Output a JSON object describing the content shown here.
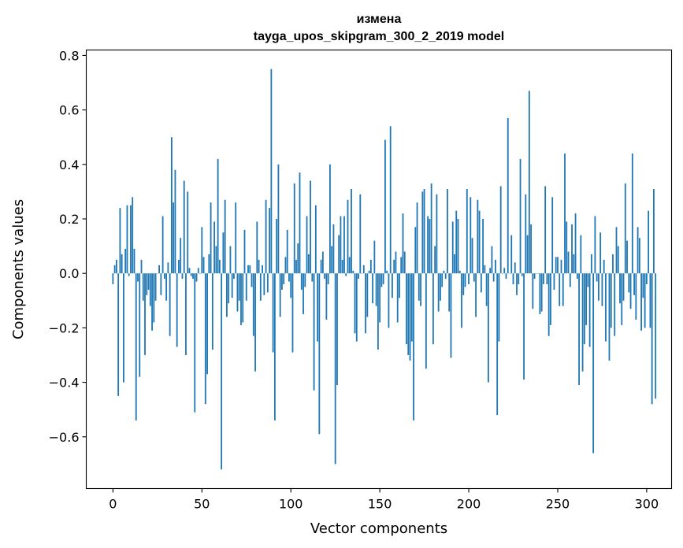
{
  "chart_data": {
    "type": "bar",
    "title": "измена",
    "subtitle": "tayga_upos_skipgram_300_2_2019 model",
    "xlabel": "Vector components",
    "ylabel": "Components values",
    "xlim": [
      -15,
      314
    ],
    "ylim": [
      -0.79,
      0.82
    ],
    "xticks": [
      0,
      50,
      100,
      150,
      200,
      250,
      300
    ],
    "xtick_labels": [
      "0",
      "50",
      "100",
      "150",
      "200",
      "250",
      "300"
    ],
    "yticks": [
      -0.6,
      -0.4,
      -0.2,
      0.0,
      0.2,
      0.4,
      0.6,
      0.8
    ],
    "ytick_labels": [
      "−0.6",
      "−0.4",
      "−0.2",
      "0.0",
      "0.2",
      "0.4",
      "0.6",
      "0.8"
    ],
    "bar_color": "#1f77b4",
    "values": [
      -0.04,
      0.03,
      0.05,
      -0.45,
      0.24,
      0.07,
      -0.4,
      0.09,
      0.25,
      -0.01,
      0.25,
      0.28,
      0.09,
      -0.54,
      -0.03,
      -0.38,
      0.05,
      -0.1,
      -0.3,
      -0.08,
      -0.06,
      -0.12,
      -0.21,
      -0.18,
      -0.1,
      0.0,
      0.03,
      -0.08,
      0.21,
      -0.02,
      -0.1,
      0.04,
      -0.23,
      0.5,
      0.26,
      0.38,
      -0.27,
      0.05,
      0.13,
      -0.02,
      0.34,
      -0.3,
      0.3,
      0.02,
      -0.01,
      -0.02,
      -0.51,
      -0.03,
      0.02,
      0.0,
      0.17,
      0.06,
      -0.48,
      -0.37,
      0.07,
      0.26,
      -0.28,
      0.19,
      0.1,
      0.42,
      0.05,
      -0.72,
      0.15,
      0.27,
      -0.16,
      -0.11,
      0.1,
      -0.09,
      -0.02,
      0.26,
      -0.14,
      -0.1,
      -0.19,
      -0.18,
      0.16,
      -0.1,
      0.03,
      0.03,
      -0.05,
      -0.23,
      -0.36,
      0.19,
      0.05,
      -0.1,
      0.03,
      -0.08,
      0.27,
      -0.07,
      0.24,
      0.75,
      -0.29,
      -0.54,
      0.2,
      0.4,
      -0.16,
      -0.06,
      -0.04,
      0.06,
      0.16,
      -0.03,
      -0.09,
      -0.29,
      0.33,
      0.05,
      0.11,
      0.37,
      -0.06,
      -0.15,
      -0.05,
      0.21,
      0.07,
      0.34,
      -0.03,
      -0.43,
      0.25,
      -0.25,
      -0.59,
      0.05,
      0.08,
      -0.02,
      -0.17,
      -0.04,
      0.4,
      0.1,
      0.18,
      -0.7,
      -0.41,
      0.14,
      0.21,
      0.05,
      0.21,
      -0.01,
      0.27,
      0.06,
      0.31,
      0.01,
      -0.22,
      -0.25,
      -0.02,
      0.29,
      0.0,
      0.03,
      -0.22,
      -0.16,
      0.01,
      0.05,
      -0.11,
      0.12,
      -0.12,
      -0.28,
      -0.18,
      -0.05,
      -0.04,
      0.49,
      0.01,
      -0.2,
      0.54,
      -0.09,
      0.05,
      0.08,
      -0.18,
      -0.09,
      0.06,
      0.22,
      0.08,
      -0.26,
      -0.3,
      -0.32,
      -0.25,
      -0.54,
      0.17,
      0.26,
      -0.1,
      -0.12,
      0.3,
      0.31,
      -0.35,
      0.21,
      0.2,
      0.33,
      -0.26,
      0.1,
      0.29,
      -0.14,
      -0.1,
      -0.05,
      0.01,
      -0.02,
      0.31,
      -0.14,
      -0.31,
      0.19,
      0.07,
      0.23,
      0.2,
      0.01,
      -0.2,
      -0.08,
      -0.05,
      0.31,
      -0.04,
      0.28,
      0.13,
      -0.03,
      -0.16,
      0.27,
      0.23,
      -0.07,
      0.2,
      0.03,
      -0.12,
      -0.4,
      0.02,
      0.1,
      -0.03,
      0.05,
      -0.52,
      -0.25,
      0.32,
      0.0,
      0.02,
      -0.02,
      0.57,
      0.0,
      0.14,
      -0.04,
      0.04,
      -0.08,
      -0.04,
      0.42,
      -0.01,
      -0.39,
      0.29,
      0.14,
      0.67,
      0.18,
      -0.13,
      -0.02,
      0.0,
      0.0,
      -0.15,
      -0.14,
      -0.04,
      0.32,
      -0.04,
      -0.23,
      -0.19,
      0.28,
      -0.06,
      0.06,
      0.06,
      -0.12,
      0.05,
      -0.12,
      0.44,
      0.19,
      0.08,
      -0.05,
      0.18,
      0.07,
      0.22,
      -0.02,
      -0.41,
      0.14,
      -0.36,
      -0.26,
      -0.19,
      -0.05,
      -0.27,
      0.07,
      -0.66,
      0.21,
      -0.03,
      -0.1,
      0.15,
      -0.12,
      0.05,
      -0.25,
      0.0,
      -0.32,
      -0.2,
      0.07,
      -0.23,
      0.17,
      0.1,
      -0.11,
      -0.19,
      -0.1,
      0.33,
      0.12,
      -0.07,
      -0.13,
      0.44,
      -0.08,
      -0.17,
      0.17,
      0.13,
      -0.21,
      -0.09,
      -0.2,
      -0.04,
      0.23,
      -0.2,
      -0.48,
      0.31,
      -0.46
    ]
  }
}
